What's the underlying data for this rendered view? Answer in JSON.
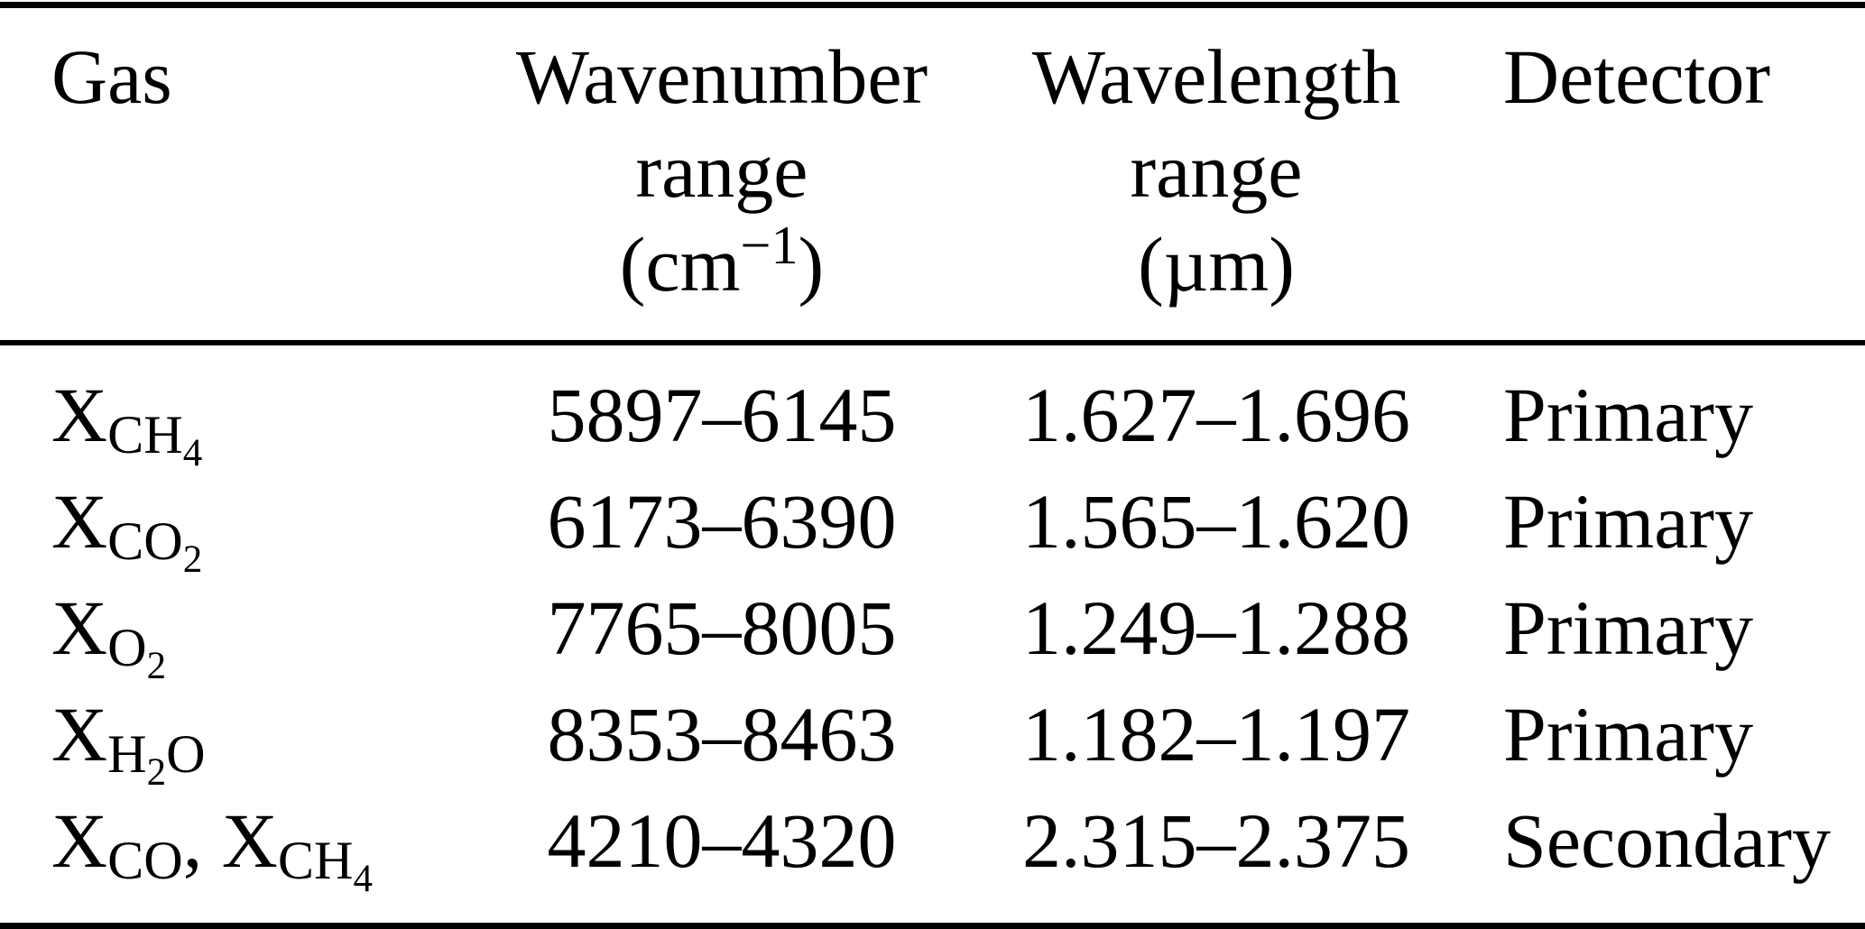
{
  "page": {
    "background": "#ffffff",
    "text_color": "#000000",
    "rule_color": "#000000"
  },
  "table": {
    "header": {
      "gas": "Gas",
      "wavenumber": {
        "line1": "Wavenumber",
        "line2": "range",
        "unit_open": "(cm",
        "unit_exp": "−1",
        "unit_close": ")"
      },
      "wavelength": {
        "line1": "Wavelength",
        "line2": "range",
        "unit": "(µm)"
      },
      "detector": "Detector"
    },
    "rows": [
      {
        "gas": [
          {
            "text": "X",
            "level": "base"
          },
          {
            "text": "CH",
            "level": "sub"
          },
          {
            "text": "4",
            "level": "subsub"
          }
        ],
        "wavenumber_range": "5897–6145",
        "wavelength_range": "1.627–1.696",
        "detector": "Primary"
      },
      {
        "gas": [
          {
            "text": "X",
            "level": "base"
          },
          {
            "text": "CO",
            "level": "sub"
          },
          {
            "text": "2",
            "level": "subsub"
          }
        ],
        "wavenumber_range": "6173–6390",
        "wavelength_range": "1.565–1.620",
        "detector": "Primary"
      },
      {
        "gas": [
          {
            "text": "X",
            "level": "base"
          },
          {
            "text": "O",
            "level": "sub"
          },
          {
            "text": "2",
            "level": "subsub"
          }
        ],
        "wavenumber_range": "7765–8005",
        "wavelength_range": "1.249–1.288",
        "detector": "Primary"
      },
      {
        "gas": [
          {
            "text": "X",
            "level": "base"
          },
          {
            "text": "H",
            "level": "sub"
          },
          {
            "text": "2",
            "level": "subsub"
          },
          {
            "text": "O",
            "level": "sub"
          }
        ],
        "wavenumber_range": "8353–8463",
        "wavelength_range": "1.182–1.197",
        "detector": "Primary"
      },
      {
        "gas": [
          {
            "text": "X",
            "level": "base"
          },
          {
            "text": "CO",
            "level": "sub"
          },
          {
            "text": ", ",
            "level": "base"
          },
          {
            "text": "X",
            "level": "base"
          },
          {
            "text": "CH",
            "level": "sub"
          },
          {
            "text": "4",
            "level": "subsub"
          }
        ],
        "wavenumber_range": "4210–4320",
        "wavelength_range": "2.315–2.375",
        "detector": "Secondary"
      }
    ]
  }
}
